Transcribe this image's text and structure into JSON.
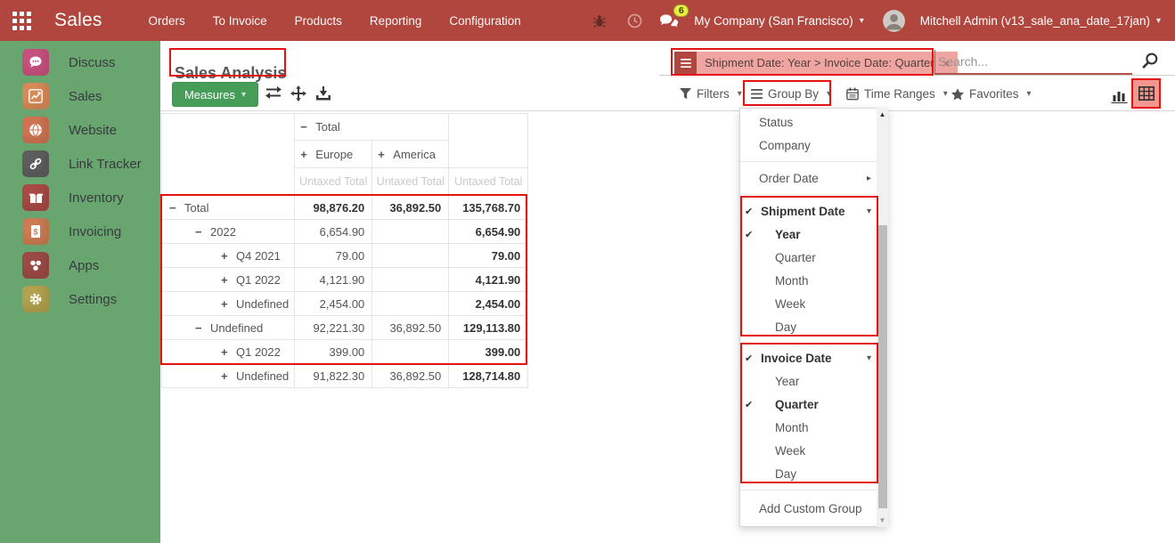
{
  "colors": {
    "topbar_bg": "#b0463e",
    "sidebar_bg": "#69a56e",
    "primary_btn": "#469d57",
    "annotation": "#e51212",
    "facet_bg": "#efa5a1",
    "facet_icon_bg": "#b0463e",
    "pivot_active_bg": "#f2968f",
    "search_underline": "#b3534c",
    "badge_bg": "#e9ee3e"
  },
  "topbar": {
    "app_name": "Sales",
    "menu": [
      "Orders",
      "To Invoice",
      "Products",
      "Reporting",
      "Configuration"
    ],
    "message_count": "6",
    "company": "My Company (San Francisco)",
    "user": "Mitchell Admin (v13_sale_ana_date_17jan)"
  },
  "sidebar": {
    "items": [
      {
        "label": "Discuss",
        "icon": "chat",
        "color": "#c7517e"
      },
      {
        "label": "Sales",
        "icon": "chart",
        "color": "#d88a57"
      },
      {
        "label": "Website",
        "icon": "globe",
        "color": "#ce7452"
      },
      {
        "label": "Link Tracker",
        "icon": "link",
        "color": "#5d5d5d"
      },
      {
        "label": "Inventory",
        "icon": "box",
        "color": "#a94a44"
      },
      {
        "label": "Invoicing",
        "icon": "invoice",
        "color": "#cc7c52"
      },
      {
        "label": "Apps",
        "icon": "apps",
        "color": "#9c4a46"
      },
      {
        "label": "Settings",
        "icon": "gear",
        "color": "#b2a24e"
      }
    ]
  },
  "control_panel": {
    "title": "Sales Analysis",
    "measures": "Measures",
    "facet": "Shipment Date: Year > Invoice Date: Quarter",
    "search_placeholder": "Search...",
    "filters": "Filters",
    "group_by": "Group By",
    "time_ranges": "Time Ranges",
    "favorites": "Favorites"
  },
  "pivot": {
    "col_total": "Total",
    "col_groups": [
      "Europe",
      "America"
    ],
    "measure": "Untaxed Total",
    "rows": [
      {
        "label": "Total",
        "level": 0,
        "expanded": true,
        "europe": "98,876.20",
        "america": "36,892.50",
        "total": "135,768.70",
        "bold": true
      },
      {
        "label": "2022",
        "level": 1,
        "expanded": true,
        "europe": "6,654.90",
        "america": "",
        "total": "6,654.90",
        "bold": false
      },
      {
        "label": "Q4 2021",
        "level": 2,
        "expanded": false,
        "europe": "79.00",
        "america": "",
        "total": "79.00",
        "bold": false
      },
      {
        "label": "Q1 2022",
        "level": 2,
        "expanded": false,
        "europe": "4,121.90",
        "america": "",
        "total": "4,121.90",
        "bold": false
      },
      {
        "label": "Undefined",
        "level": 2,
        "expanded": false,
        "europe": "2,454.00",
        "america": "",
        "total": "2,454.00",
        "bold": false
      },
      {
        "label": "Undefined",
        "level": 1,
        "expanded": true,
        "europe": "92,221.30",
        "america": "36,892.50",
        "total": "129,113.80",
        "bold": false
      },
      {
        "label": "Q1 2022",
        "level": 2,
        "expanded": false,
        "europe": "399.00",
        "america": "",
        "total": "399.00",
        "bold": false
      },
      {
        "label": "Undefined",
        "level": 2,
        "expanded": false,
        "europe": "91,822.30",
        "america": "36,892.50",
        "total": "128,714.80",
        "bold": false
      }
    ]
  },
  "groupby_menu": {
    "items": [
      {
        "type": "item",
        "label": "Status"
      },
      {
        "type": "item",
        "label": "Company"
      },
      {
        "type": "divider"
      },
      {
        "type": "submenu",
        "label": "Order Date"
      },
      {
        "type": "divider"
      },
      {
        "type": "parent",
        "label": "Shipment Date",
        "checked": true
      },
      {
        "type": "option",
        "label": "Year",
        "checked": true
      },
      {
        "type": "option",
        "label": "Quarter",
        "checked": false
      },
      {
        "type": "option",
        "label": "Month",
        "checked": false
      },
      {
        "type": "option",
        "label": "Week",
        "checked": false
      },
      {
        "type": "option",
        "label": "Day",
        "checked": false
      },
      {
        "type": "divider",
        "small": true
      },
      {
        "type": "parent",
        "label": "Invoice Date",
        "checked": true
      },
      {
        "type": "option",
        "label": "Year",
        "checked": false
      },
      {
        "type": "option",
        "label": "Quarter",
        "checked": true
      },
      {
        "type": "option",
        "label": "Month",
        "checked": false
      },
      {
        "type": "option",
        "label": "Week",
        "checked": false
      },
      {
        "type": "option",
        "label": "Day",
        "checked": false
      },
      {
        "type": "divider"
      },
      {
        "type": "item",
        "label": "Add Custom Group",
        "tall": true
      }
    ]
  }
}
